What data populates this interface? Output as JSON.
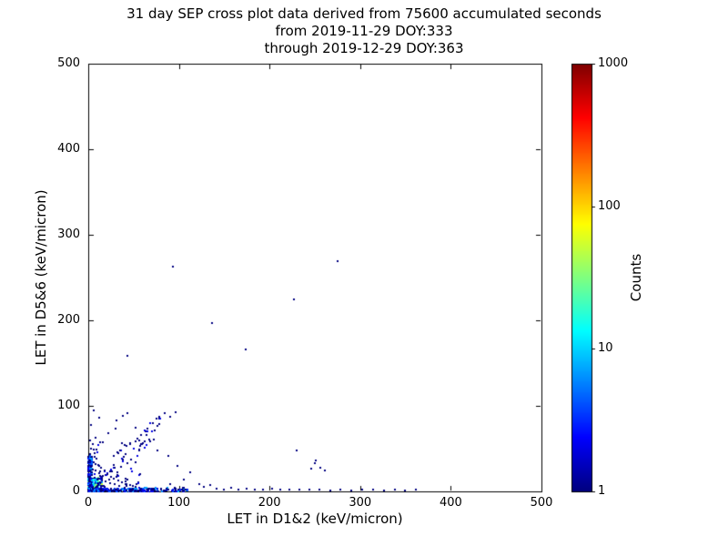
{
  "chart_data": {
    "type": "scatter",
    "title_lines": [
      "31 day SEP cross plot data derived from 75600 accumulated seconds",
      "from 2019-11-29 DOY:333",
      "through 2019-12-29 DOY:363"
    ],
    "xlabel": "LET in D1&2 (keV/micron)",
    "ylabel": "LET in D5&6 (keV/micron)",
    "xlim": [
      0,
      500
    ],
    "ylim": [
      0,
      500
    ],
    "xticks": [
      0,
      100,
      200,
      300,
      400,
      500
    ],
    "yticks": [
      0,
      100,
      200,
      300,
      400,
      500
    ],
    "grid": false,
    "legend": "none",
    "colorbar": {
      "label": "Counts",
      "scale": "log",
      "min": 1,
      "max": 1000,
      "ticks": [
        1,
        10,
        100,
        1000
      ],
      "colormap": "jet",
      "low_color": "#000080",
      "high_color": "#800000"
    },
    "points": [
      [
        93,
        263
      ],
      [
        275,
        269
      ],
      [
        227,
        224
      ],
      [
        137,
        197
      ],
      [
        174,
        166
      ],
      [
        43,
        159
      ],
      [
        96,
        93
      ],
      [
        90,
        87
      ],
      [
        84,
        91
      ],
      [
        43,
        91
      ],
      [
        38,
        88
      ],
      [
        31,
        83
      ],
      [
        12,
        86
      ],
      [
        6,
        95
      ],
      [
        3,
        78
      ],
      [
        22,
        68
      ],
      [
        30,
        73
      ],
      [
        8,
        63
      ],
      [
        16,
        57
      ],
      [
        52,
        74
      ],
      [
        58,
        66
      ],
      [
        68,
        58
      ],
      [
        76,
        48
      ],
      [
        88,
        41
      ],
      [
        98,
        30
      ],
      [
        105,
        14
      ],
      [
        112,
        22
      ],
      [
        250,
        33
      ],
      [
        256,
        28
      ],
      [
        251,
        36
      ],
      [
        261,
        24
      ],
      [
        246,
        27
      ],
      [
        230,
        48
      ],
      [
        122,
        9
      ],
      [
        128,
        5
      ],
      [
        135,
        7
      ],
      [
        142,
        3
      ],
      [
        150,
        2
      ],
      [
        158,
        4
      ],
      [
        166,
        2
      ],
      [
        175,
        3
      ],
      [
        184,
        2
      ],
      [
        193,
        2
      ],
      [
        203,
        3
      ],
      [
        212,
        2
      ],
      [
        222,
        2
      ],
      [
        233,
        2
      ],
      [
        244,
        2
      ],
      [
        255,
        2
      ],
      [
        267,
        1
      ],
      [
        278,
        2
      ],
      [
        290,
        1
      ],
      [
        302,
        2
      ],
      [
        314,
        2
      ],
      [
        326,
        1
      ],
      [
        338,
        2
      ],
      [
        349,
        1
      ],
      [
        361,
        2
      ],
      [
        2,
        60
      ],
      [
        5,
        55
      ],
      [
        3,
        50
      ],
      [
        7,
        45
      ],
      [
        2,
        44
      ],
      [
        4,
        40
      ],
      [
        9,
        38
      ],
      [
        2,
        36
      ],
      [
        6,
        34
      ],
      [
        11,
        31
      ],
      [
        3,
        30
      ],
      [
        14,
        28
      ],
      [
        5,
        26
      ],
      [
        18,
        25
      ],
      [
        8,
        24
      ],
      [
        2,
        23
      ],
      [
        12,
        21
      ],
      [
        21,
        20
      ],
      [
        4,
        19
      ],
      [
        16,
        18
      ],
      [
        25,
        17
      ],
      [
        7,
        16
      ],
      [
        28,
        15
      ],
      [
        10,
        14
      ],
      [
        33,
        13
      ],
      [
        19,
        12
      ],
      [
        37,
        11
      ],
      [
        24,
        10
      ],
      [
        41,
        9
      ],
      [
        29,
        8
      ],
      [
        46,
        7
      ],
      [
        34,
        6
      ],
      [
        52,
        5
      ],
      [
        40,
        4
      ],
      [
        58,
        3
      ],
      [
        47,
        2
      ],
      [
        65,
        2
      ],
      [
        72,
        3
      ],
      [
        80,
        2
      ],
      [
        86,
        3
      ],
      [
        90,
        8
      ],
      [
        95,
        4
      ]
    ],
    "dense_regions": [
      {
        "shape": "blob",
        "x_range": [
          0,
          16
        ],
        "x_bias": 2.2,
        "y_range": [
          0,
          16
        ],
        "y_bias": 2.2,
        "n": 420,
        "count_range": [
          1,
          60
        ],
        "count_bias": 4,
        "seed": 101
      },
      {
        "shape": "blob",
        "x_range": [
          0,
          110
        ],
        "x_bias": 1.8,
        "y_range": [
          0,
          4
        ],
        "y_bias": 1.5,
        "n": 260,
        "count_range": [
          1,
          8
        ],
        "count_bias": 3,
        "seed": 202
      },
      {
        "shape": "blob",
        "x_range": [
          0,
          4
        ],
        "x_bias": 1.5,
        "y_range": [
          0,
          45
        ],
        "y_bias": 1.8,
        "n": 150,
        "count_range": [
          1,
          8
        ],
        "count_bias": 3,
        "seed": 303
      },
      {
        "shape": "diagonal",
        "x_range": [
          8,
          80
        ],
        "slope": 1.0,
        "jitter": 14,
        "n": 60,
        "count_range": [
          1,
          2
        ],
        "count_bias": 2,
        "seed": 404
      },
      {
        "shape": "blob",
        "x_range": [
          5,
          60
        ],
        "x_bias": 1.2,
        "y_range": [
          5,
          60
        ],
        "y_bias": 1.6,
        "n": 45,
        "count_range": [
          1,
          2
        ],
        "count_bias": 2,
        "seed": 505
      }
    ]
  }
}
